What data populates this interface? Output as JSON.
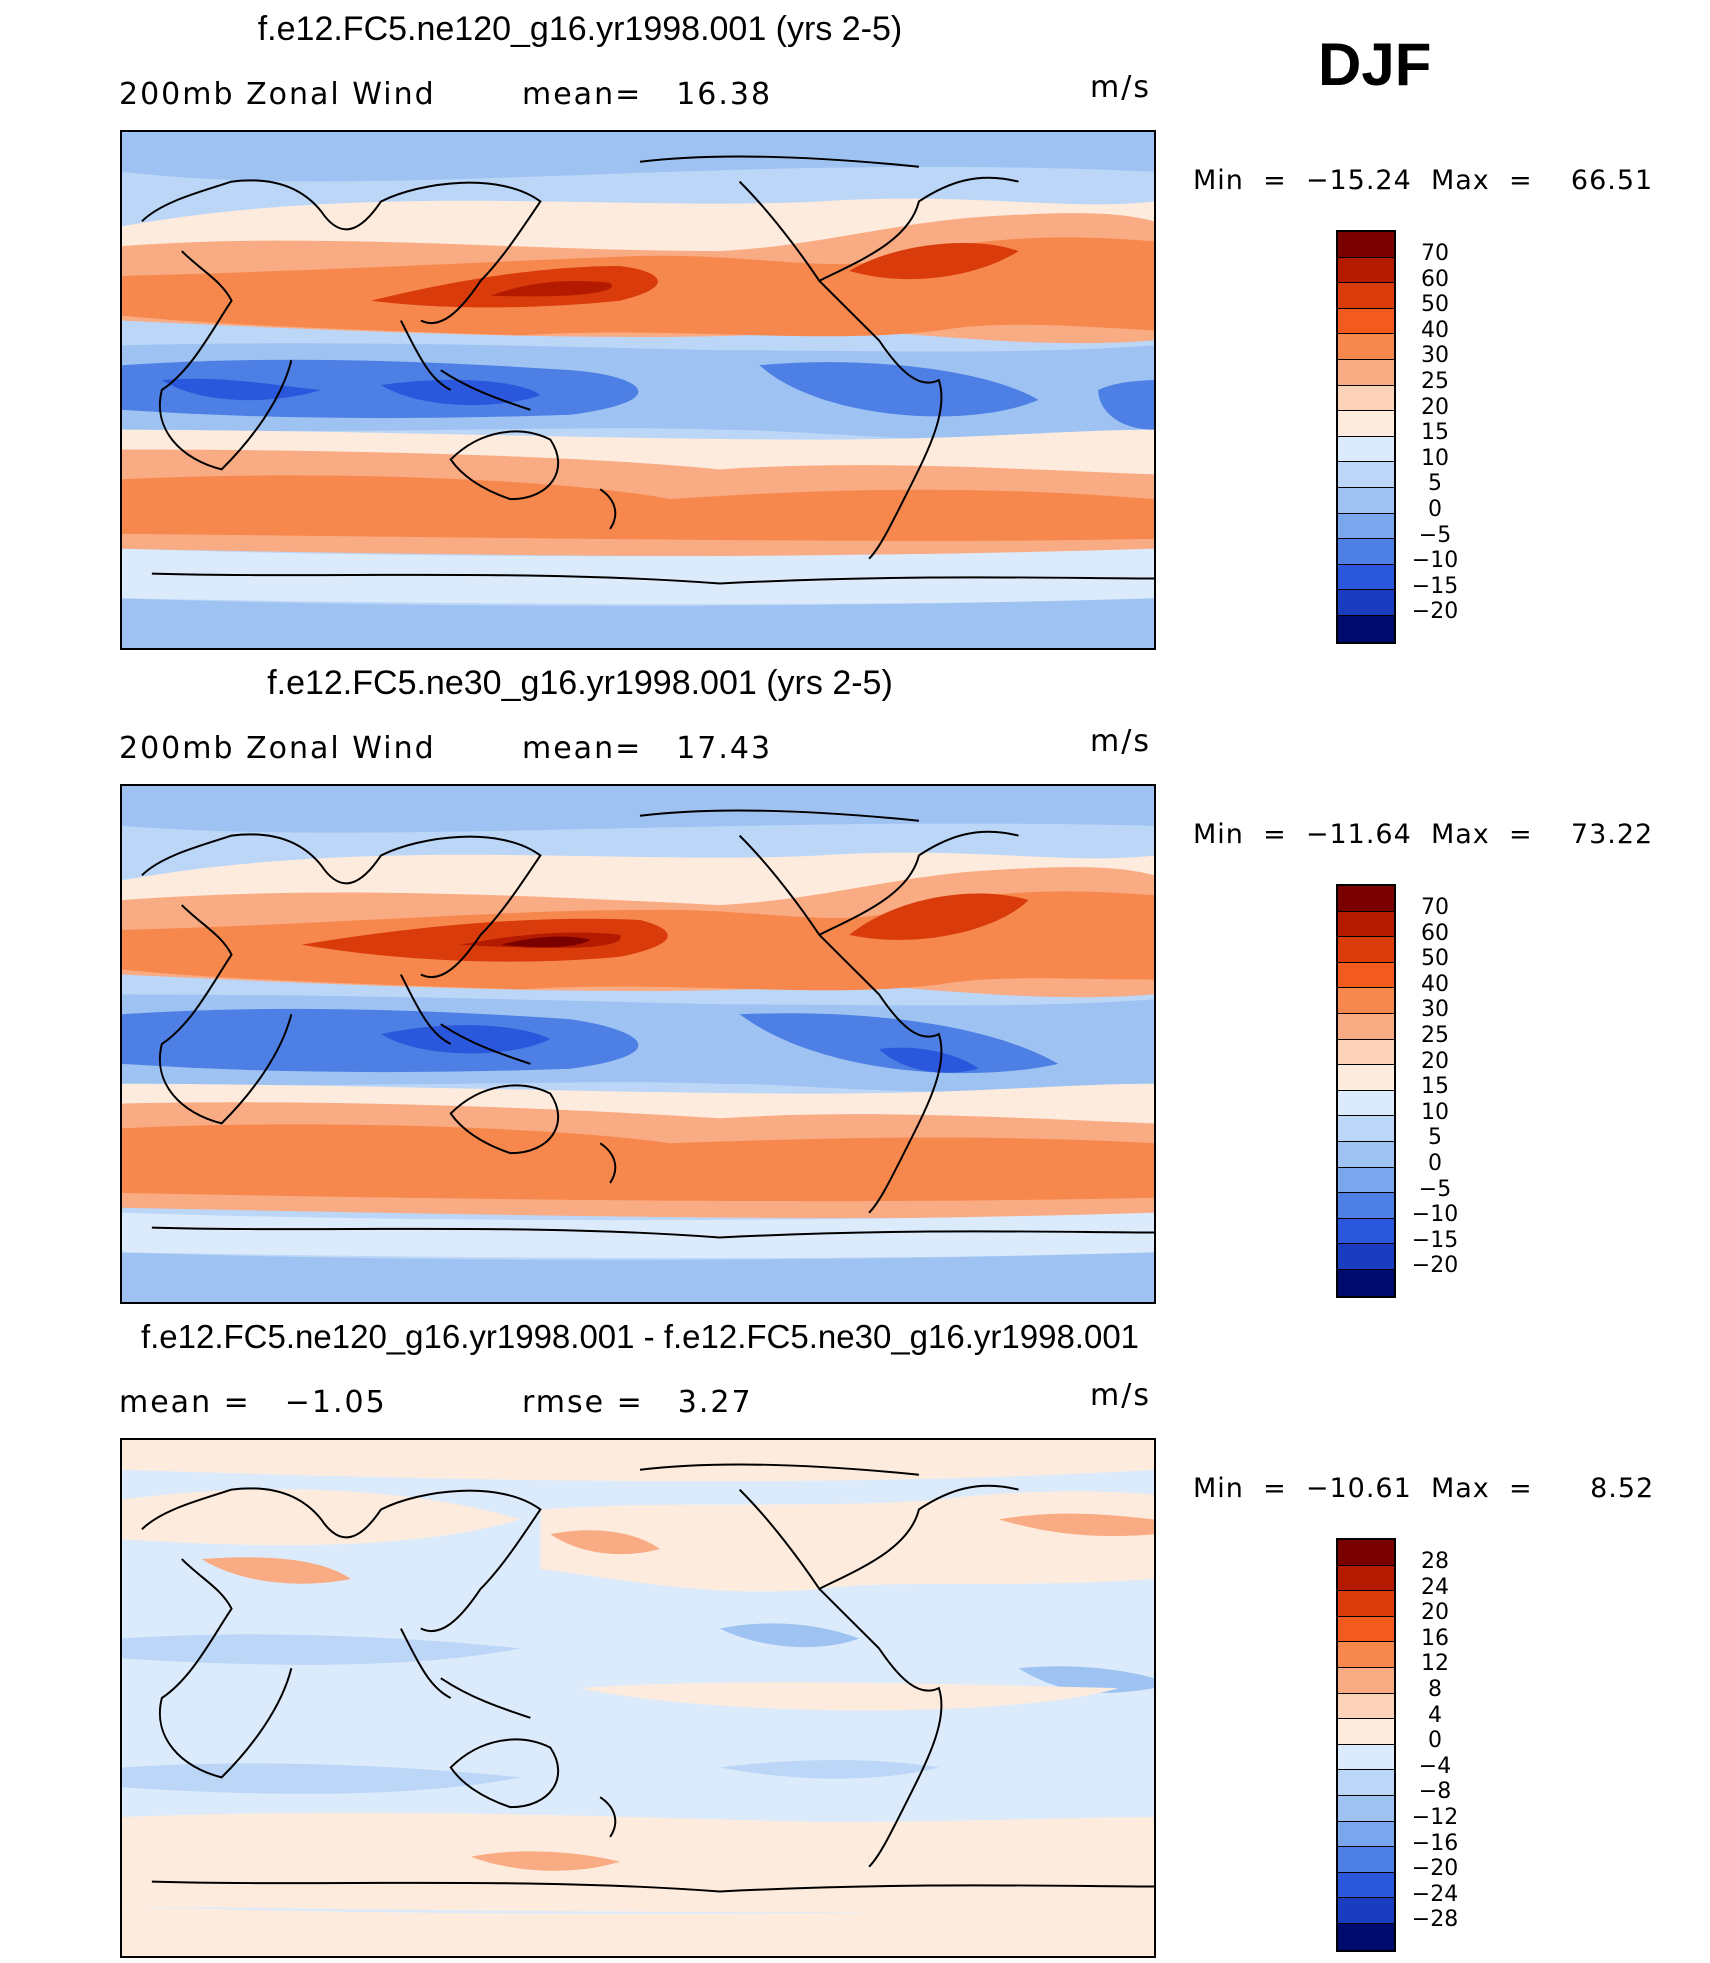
{
  "season": "DJF",
  "colors": {
    "red70": "#7a0000",
    "red60": "#b31a00",
    "red50": "#d93b0b",
    "red40": "#f35a1e",
    "red30": "#f6884d",
    "red25": "#f9ab84",
    "red20": "#fcd2b8",
    "red15": "#fdebdd",
    "blue10": "#dcebfb",
    "blue5": "#bcd6f7",
    "blue0": "#9ec3f2",
    "bluem5": "#7aa6ee",
    "bluem10": "#4d7fe4",
    "bluem15": "#2a57db",
    "bluem20": "#1a3dc0",
    "bluem25": "#0a1f9a",
    "bluem30": "#000b6e"
  },
  "panels": [
    {
      "id": "ne120",
      "title": "f.e12.FC5.ne120_g16.yr1998.001 (yrs 2-5)",
      "left_label": "200mb Zonal Wind",
      "right_label": "mean=",
      "right_value": "16.38",
      "units": "m/s",
      "min_label": "Min",
      "min_value": "−15.24",
      "max_label": "Max",
      "max_value": "66.51",
      "legend_levels": [
        "70",
        "60",
        "50",
        "40",
        "30",
        "25",
        "20",
        "15",
        "10",
        "5",
        "0",
        "−5",
        "−10",
        "−15",
        "−20"
      ]
    },
    {
      "id": "ne30",
      "title": "f.e12.FC5.ne30_g16.yr1998.001 (yrs 2-5)",
      "left_label": "200mb Zonal Wind",
      "right_label": "mean=",
      "right_value": "17.43",
      "units": "m/s",
      "min_label": "Min",
      "min_value": "−11.64",
      "max_label": "Max",
      "max_value": "73.22",
      "legend_levels": [
        "70",
        "60",
        "50",
        "40",
        "30",
        "25",
        "20",
        "15",
        "10",
        "5",
        "0",
        "−5",
        "−10",
        "−15",
        "−20"
      ]
    },
    {
      "id": "diff",
      "title": "f.e12.FC5.ne120_g16.yr1998.001 - f.e12.FC5.ne30_g16.yr1998.001",
      "left_label": "mean =",
      "left_value": "−1.05",
      "right_label": "rmse =",
      "right_value": "3.27",
      "units": "m/s",
      "min_label": "Min",
      "min_value": "−10.61",
      "max_label": "Max",
      "max_value": "8.52",
      "legend_levels": [
        "28",
        "24",
        "20",
        "16",
        "12",
        "8",
        "4",
        "0",
        "−4",
        "−8",
        "−12",
        "−16",
        "−20",
        "−24",
        "−28"
      ]
    }
  ]
}
